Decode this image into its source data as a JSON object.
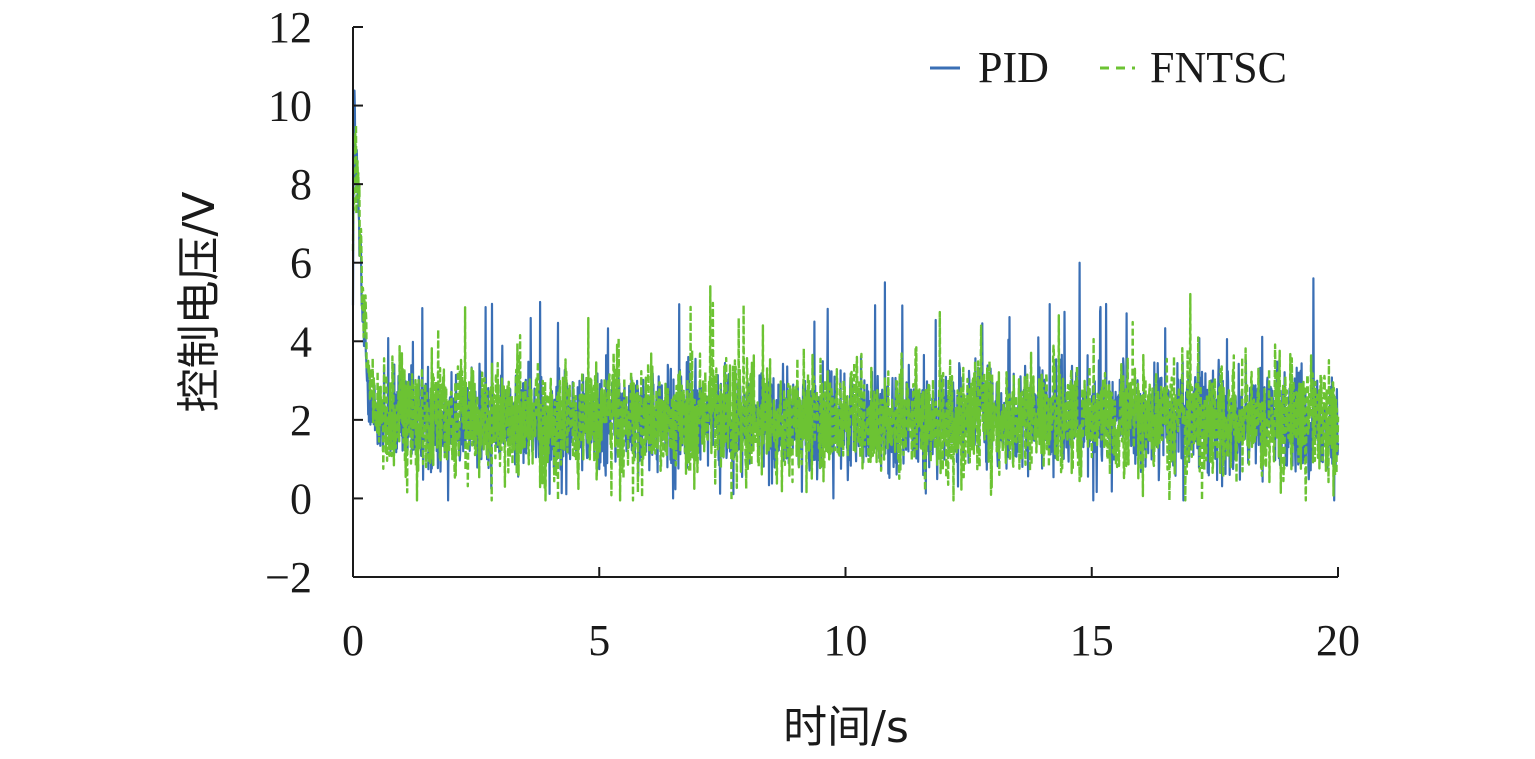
{
  "chart_data": {
    "type": "line",
    "xlabel": "时间/s",
    "ylabel": "控制电压/V",
    "xlim": [
      0,
      20
    ],
    "ylim": [
      -2,
      12
    ],
    "x_ticks": [
      0,
      5,
      10,
      15,
      20
    ],
    "y_ticks": [
      -2,
      0,
      2,
      4,
      6,
      8,
      10,
      12
    ],
    "x_tick_labels": [
      "0",
      "5",
      "10",
      "15",
      "20"
    ],
    "y_tick_labels": [
      "−2",
      "0",
      "2",
      "4",
      "6",
      "8",
      "10",
      "12"
    ],
    "grid": false,
    "legend_position": "top-right",
    "series": [
      {
        "name": "PID",
        "color": "#3a6fb5",
        "style": "solid",
        "x": [
          0.0,
          0.02,
          0.05,
          0.1,
          0.15,
          0.2,
          0.3,
          0.4,
          0.5,
          0.75,
          1.0,
          1.5,
          2.0,
          3.0,
          3.8,
          4.0,
          5.0,
          6.0,
          6.5,
          7.0,
          8.0,
          9.0,
          9.5,
          9.75,
          10.0,
          10.8,
          11.0,
          12.0,
          13.0,
          14.0,
          14.75,
          15.0,
          16.0,
          17.0,
          18.0,
          19.0,
          19.5,
          20.0
        ],
        "y": [
          5.6,
          10.3,
          8.8,
          7.6,
          6.0,
          4.5,
          3.0,
          2.2,
          2.0,
          2.0,
          2.0,
          2.0,
          2.0,
          2.0,
          5.0,
          2.0,
          2.0,
          2.0,
          0.0,
          2.0,
          2.0,
          2.0,
          2.0,
          0.0,
          2.0,
          5.5,
          2.0,
          2.0,
          2.0,
          2.0,
          6.0,
          2.0,
          2.0,
          2.0,
          2.0,
          2.0,
          5.6,
          2.0
        ]
      },
      {
        "name": "FNTSC",
        "color": "#6cc333",
        "style": "dashed",
        "x": [
          0.0,
          0.02,
          0.05,
          0.1,
          0.15,
          0.2,
          0.3,
          0.4,
          0.5,
          0.75,
          1.0,
          1.5,
          2.0,
          3.0,
          4.0,
          5.0,
          6.0,
          7.0,
          7.25,
          8.0,
          9.0,
          9.75,
          10.0,
          11.0,
          12.0,
          13.0,
          14.0,
          15.0,
          16.0,
          17.0,
          18.0,
          19.0,
          20.0
        ],
        "y": [
          6.5,
          8.2,
          8.6,
          8.0,
          6.5,
          5.0,
          3.5,
          2.4,
          2.0,
          2.0,
          2.0,
          2.0,
          2.0,
          2.0,
          2.0,
          2.0,
          2.0,
          2.0,
          5.4,
          2.0,
          2.0,
          0.2,
          2.0,
          2.0,
          2.0,
          2.0,
          2.0,
          2.0,
          2.0,
          5.2,
          2.0,
          2.0,
          2.0
        ]
      }
    ],
    "steady_state": {
      "center": 2.0,
      "pid_band": [
        0.8,
        3.3
      ],
      "fntsc_band": [
        0.7,
        3.5
      ]
    }
  }
}
